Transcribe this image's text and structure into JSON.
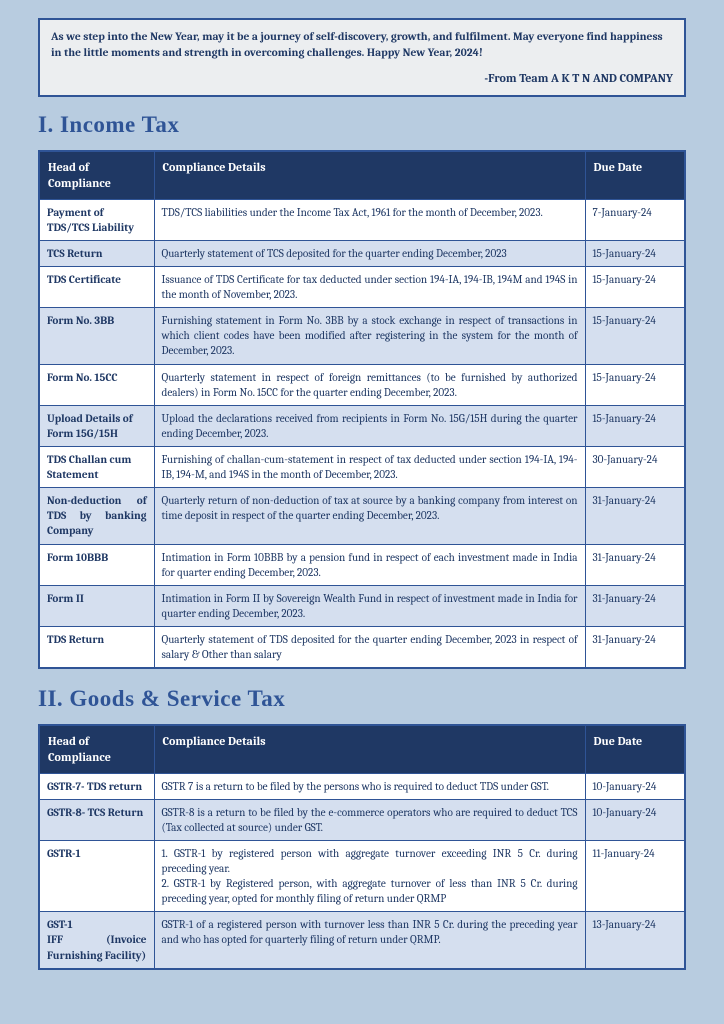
{
  "greeting": {
    "text": "As we step into the New Year, may it be a journey of self-discovery, growth, and fulfilment. May everyone find happiness in the little moments and strength in overcoming challenges. Happy New Year, 2024!",
    "sign": "-From Team A K T N AND COMPANY"
  },
  "section1": {
    "heading": "I.   Income Tax",
    "columns": {
      "c1": "Head of Compliance",
      "c2": "Compliance Details",
      "c3": "Due Date"
    },
    "rows": [
      {
        "head": "Payment of TDS/TCS Liability",
        "detail": "TDS/TCS liabilities under the Income Tax Act, 1961 for the month of December, 2023.",
        "due": "7-January-24"
      },
      {
        "head": "TCS Return",
        "detail": "Quarterly statement of TCS deposited for the quarter ending December, 2023",
        "due": "15-January-24"
      },
      {
        "head": "TDS Certificate",
        "detail": "Issuance of TDS Certificate for tax deducted under section 194-IA, 194-IB, 194M and 194S in the month of November, 2023.",
        "due": "15-January-24"
      },
      {
        "head": "Form No. 3BB",
        "detail": "Furnishing statement in Form No. 3BB by a stock exchange in respect of transactions in which client codes have been modified after registering in the system for the month of December, 2023.",
        "due": "15-January-24"
      },
      {
        "head": "Form No. 15CC",
        "detail": "Quarterly statement in respect of foreign remittances (to be furnished by authorized dealers) in Form No. 15CC for the quarter ending December, 2023.",
        "due": "15-January-24"
      },
      {
        "head": "Upload Details of Form 15G/15H",
        "detail": "Upload the declarations received from recipients in Form No. 15G/15H during the quarter ending December, 2023.",
        "due": "15-January-24"
      },
      {
        "head": "TDS Challan cum Statement",
        "detail": "Furnishing of challan-cum-statement in respect of tax deducted under section 194-IA, 194-IB, 194-M, and 194S in the month of December, 2023.",
        "due": "30-January-24"
      },
      {
        "head": "Non-deduction of TDS by banking Company",
        "detail": "Quarterly return of non-deduction of tax at source by a banking company from interest on time deposit in respect of the quarter ending December, 2023.",
        "due": "31-January-24"
      },
      {
        "head": "Form 10BBB",
        "detail": "Intimation in Form 10BBB by a pension fund in respect of each investment made in India for quarter ending December, 2023.",
        "due": "31-January-24"
      },
      {
        "head": "Form II",
        "detail": "Intimation in Form II by Sovereign Wealth Fund in respect of investment made in India for quarter ending December, 2023.",
        "due": "31-January-24"
      },
      {
        "head": "TDS Return",
        "detail": "Quarterly statement of TDS deposited for the quarter ending December, 2023 in respect of salary & Other than salary",
        "due": "31-January-24"
      }
    ]
  },
  "section2": {
    "heading": "II.  Goods & Service Tax",
    "columns": {
      "c1": "Head of Compliance",
      "c2": "Compliance Details",
      "c3": "Due Date"
    },
    "rows": [
      {
        "head": "GSTR-7- TDS return",
        "detail": "GSTR 7 is a return to be filed by the persons who is required to deduct TDS under GST.",
        "due": "10-January-24"
      },
      {
        "head": "GSTR-8- TCS Return",
        "detail": "GSTR-8 is a return to be filed by the e-commerce operators who are required to deduct TCS (Tax collected at source) under GST.",
        "due": "10-January-24"
      },
      {
        "head": "GSTR-1",
        "detail": "1. GSTR-1 by registered person with aggregate turnover exceeding INR 5 Cr. during preceding year.\n2. GSTR-1 by Registered person, with aggregate turnover of less than INR 5 Cr. during preceding year, opted for monthly filing of return under QRMP",
        "due": "11-January-24"
      },
      {
        "head": "GST-1\nIFF (Invoice Furnishing Facility)",
        "detail": "GSTR-1 of a registered person with turnover less than INR 5 Cr. during the preceding year and who has opted for quarterly filing of return under QRMP.",
        "due": "13-January-24"
      }
    ]
  }
}
